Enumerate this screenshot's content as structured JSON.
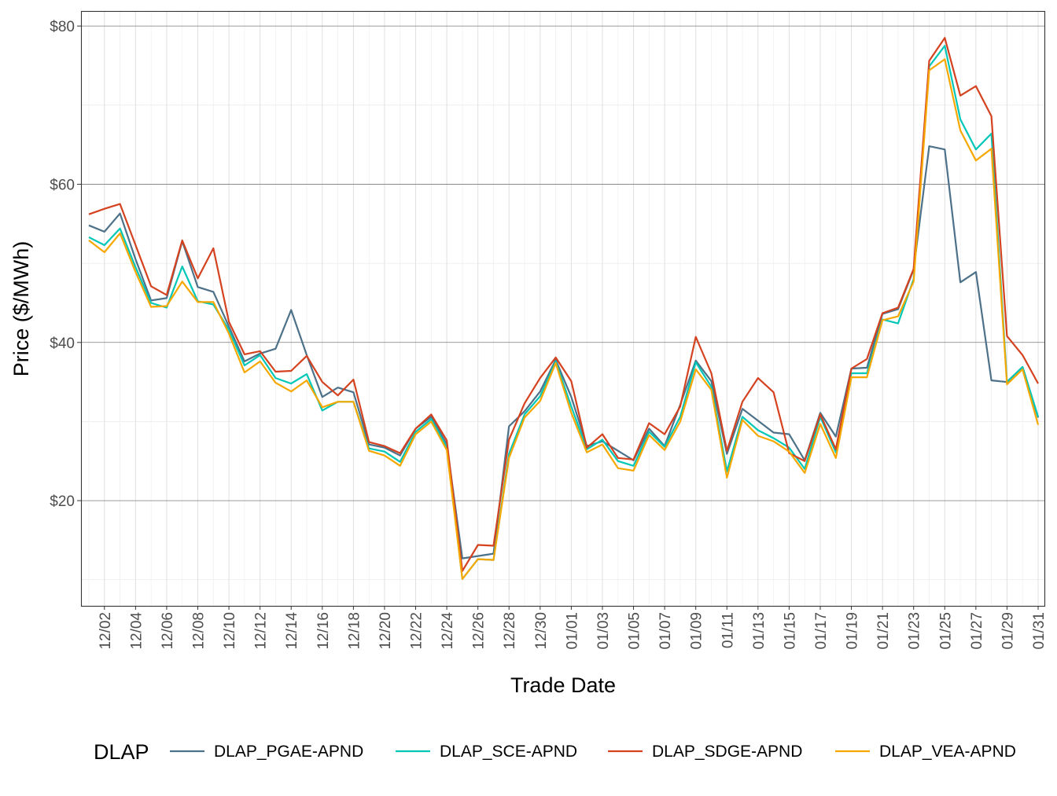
{
  "chart_data": {
    "type": "line",
    "xlabel": "Trade Date",
    "ylabel": "Price ($/MWh)",
    "ylim": [
      6.7,
      81.9
    ],
    "yticks": [
      20,
      40,
      60,
      80
    ],
    "ytick_labels": [
      "$20",
      "$40",
      "$60",
      "$80"
    ],
    "grid": true,
    "legend_position": "bottom",
    "legend_title": "DLAP",
    "x": [
      "12/01",
      "12/02",
      "12/03",
      "12/04",
      "12/05",
      "12/06",
      "12/07",
      "12/08",
      "12/09",
      "12/10",
      "12/11",
      "12/12",
      "12/13",
      "12/14",
      "12/15",
      "12/16",
      "12/17",
      "12/18",
      "12/19",
      "12/20",
      "12/21",
      "12/22",
      "12/23",
      "12/24",
      "12/25",
      "12/26",
      "12/27",
      "12/28",
      "12/29",
      "12/30",
      "12/31",
      "01/01",
      "01/02",
      "01/03",
      "01/04",
      "01/05",
      "01/06",
      "01/07",
      "01/08",
      "01/09",
      "01/10",
      "01/11",
      "01/12",
      "01/13",
      "01/14",
      "01/15",
      "01/16",
      "01/17",
      "01/18",
      "01/19",
      "01/20",
      "01/21",
      "01/22",
      "01/23",
      "01/24",
      "01/25",
      "01/26",
      "01/27",
      "01/28",
      "01/29",
      "01/30",
      "01/31"
    ],
    "xtick_labels": [
      "12/02",
      "12/04",
      "12/06",
      "12/08",
      "12/10",
      "12/12",
      "12/14",
      "12/16",
      "12/18",
      "12/20",
      "12/22",
      "12/24",
      "12/26",
      "12/28",
      "12/30",
      "01/01",
      "01/03",
      "01/05",
      "01/07",
      "01/09",
      "01/11",
      "01/13",
      "01/15",
      "01/17",
      "01/19",
      "01/21",
      "01/23",
      "01/25",
      "01/27",
      "01/29",
      "01/31"
    ],
    "series": [
      {
        "name": "DLAP_PGAE-APND",
        "color": "#4C7188",
        "values": [
          54.8,
          54.0,
          56.3,
          50.5,
          45.3,
          45.6,
          52.8,
          47.0,
          46.4,
          42.0,
          37.6,
          38.6,
          39.2,
          44.1,
          38.4,
          33.1,
          34.3,
          33.7,
          27.1,
          26.7,
          25.7,
          29.1,
          30.6,
          27.1,
          12.7,
          13.0,
          13.3,
          29.4,
          31.3,
          33.8,
          37.8,
          33.1,
          26.9,
          27.5,
          26.3,
          25.1,
          29.1,
          26.9,
          32.1,
          37.7,
          35.1,
          25.9,
          31.6,
          30.1,
          28.6,
          28.4,
          25.1,
          31.1,
          28.1,
          36.7,
          36.8,
          43.6,
          44.2,
          49.2,
          64.8,
          64.4,
          47.6,
          48.9,
          35.2,
          35.0,
          36.9,
          30.5
        ]
      },
      {
        "name": "DLAP_SCE-APND",
        "color": "#00C7B7",
        "values": [
          53.3,
          52.3,
          54.4,
          49.5,
          45.0,
          44.4,
          49.6,
          45.2,
          44.8,
          41.6,
          37.1,
          38.4,
          35.5,
          34.8,
          36.0,
          31.4,
          32.5,
          32.5,
          26.6,
          26.2,
          24.9,
          28.7,
          30.3,
          26.8,
          10.1,
          12.6,
          12.5,
          25.9,
          30.9,
          33.2,
          37.6,
          31.9,
          26.5,
          27.7,
          25.0,
          24.4,
          28.7,
          26.8,
          30.6,
          37.5,
          34.4,
          23.7,
          30.6,
          28.9,
          27.9,
          26.7,
          24.0,
          30.6,
          26.1,
          36.1,
          36.1,
          42.9,
          42.4,
          48.0,
          74.9,
          77.5,
          68.2,
          64.4,
          66.4,
          35.0,
          36.9,
          30.6
        ]
      },
      {
        "name": "DLAP_SDGE-APND",
        "color": "#D4421F",
        "values": [
          56.2,
          56.9,
          57.5,
          52.3,
          47.1,
          46.0,
          52.9,
          48.1,
          51.9,
          42.6,
          38.5,
          38.9,
          36.3,
          36.4,
          38.3,
          35.0,
          33.3,
          35.3,
          27.4,
          26.9,
          26.0,
          29.1,
          30.9,
          27.6,
          11.1,
          14.4,
          14.3,
          27.7,
          32.3,
          35.5,
          38.1,
          35.1,
          26.7,
          28.4,
          25.4,
          25.2,
          29.8,
          28.4,
          31.9,
          40.7,
          36.1,
          26.3,
          32.5,
          35.5,
          33.7,
          26.0,
          25.0,
          30.9,
          26.5,
          36.7,
          37.9,
          43.7,
          44.4,
          49.3,
          75.6,
          78.5,
          71.2,
          72.4,
          68.6,
          40.8,
          38.4,
          34.8
        ]
      },
      {
        "name": "DLAP_VEA-APND",
        "color": "#F6A700",
        "values": [
          52.9,
          51.4,
          53.8,
          48.9,
          44.5,
          44.6,
          47.7,
          45.1,
          45.1,
          41.1,
          36.2,
          37.6,
          34.9,
          33.8,
          35.2,
          31.8,
          32.5,
          32.5,
          26.3,
          25.7,
          24.4,
          28.4,
          30.0,
          26.4,
          10.1,
          12.6,
          12.5,
          25.4,
          30.5,
          32.6,
          37.4,
          31.1,
          26.1,
          27.1,
          24.1,
          23.8,
          28.3,
          26.4,
          30.0,
          36.6,
          34.0,
          22.9,
          30.2,
          28.2,
          27.5,
          26.2,
          23.5,
          29.7,
          25.4,
          35.6,
          35.6,
          42.8,
          43.3,
          47.7,
          74.4,
          75.8,
          66.8,
          63.0,
          64.5,
          34.7,
          36.6,
          29.6
        ]
      }
    ]
  }
}
